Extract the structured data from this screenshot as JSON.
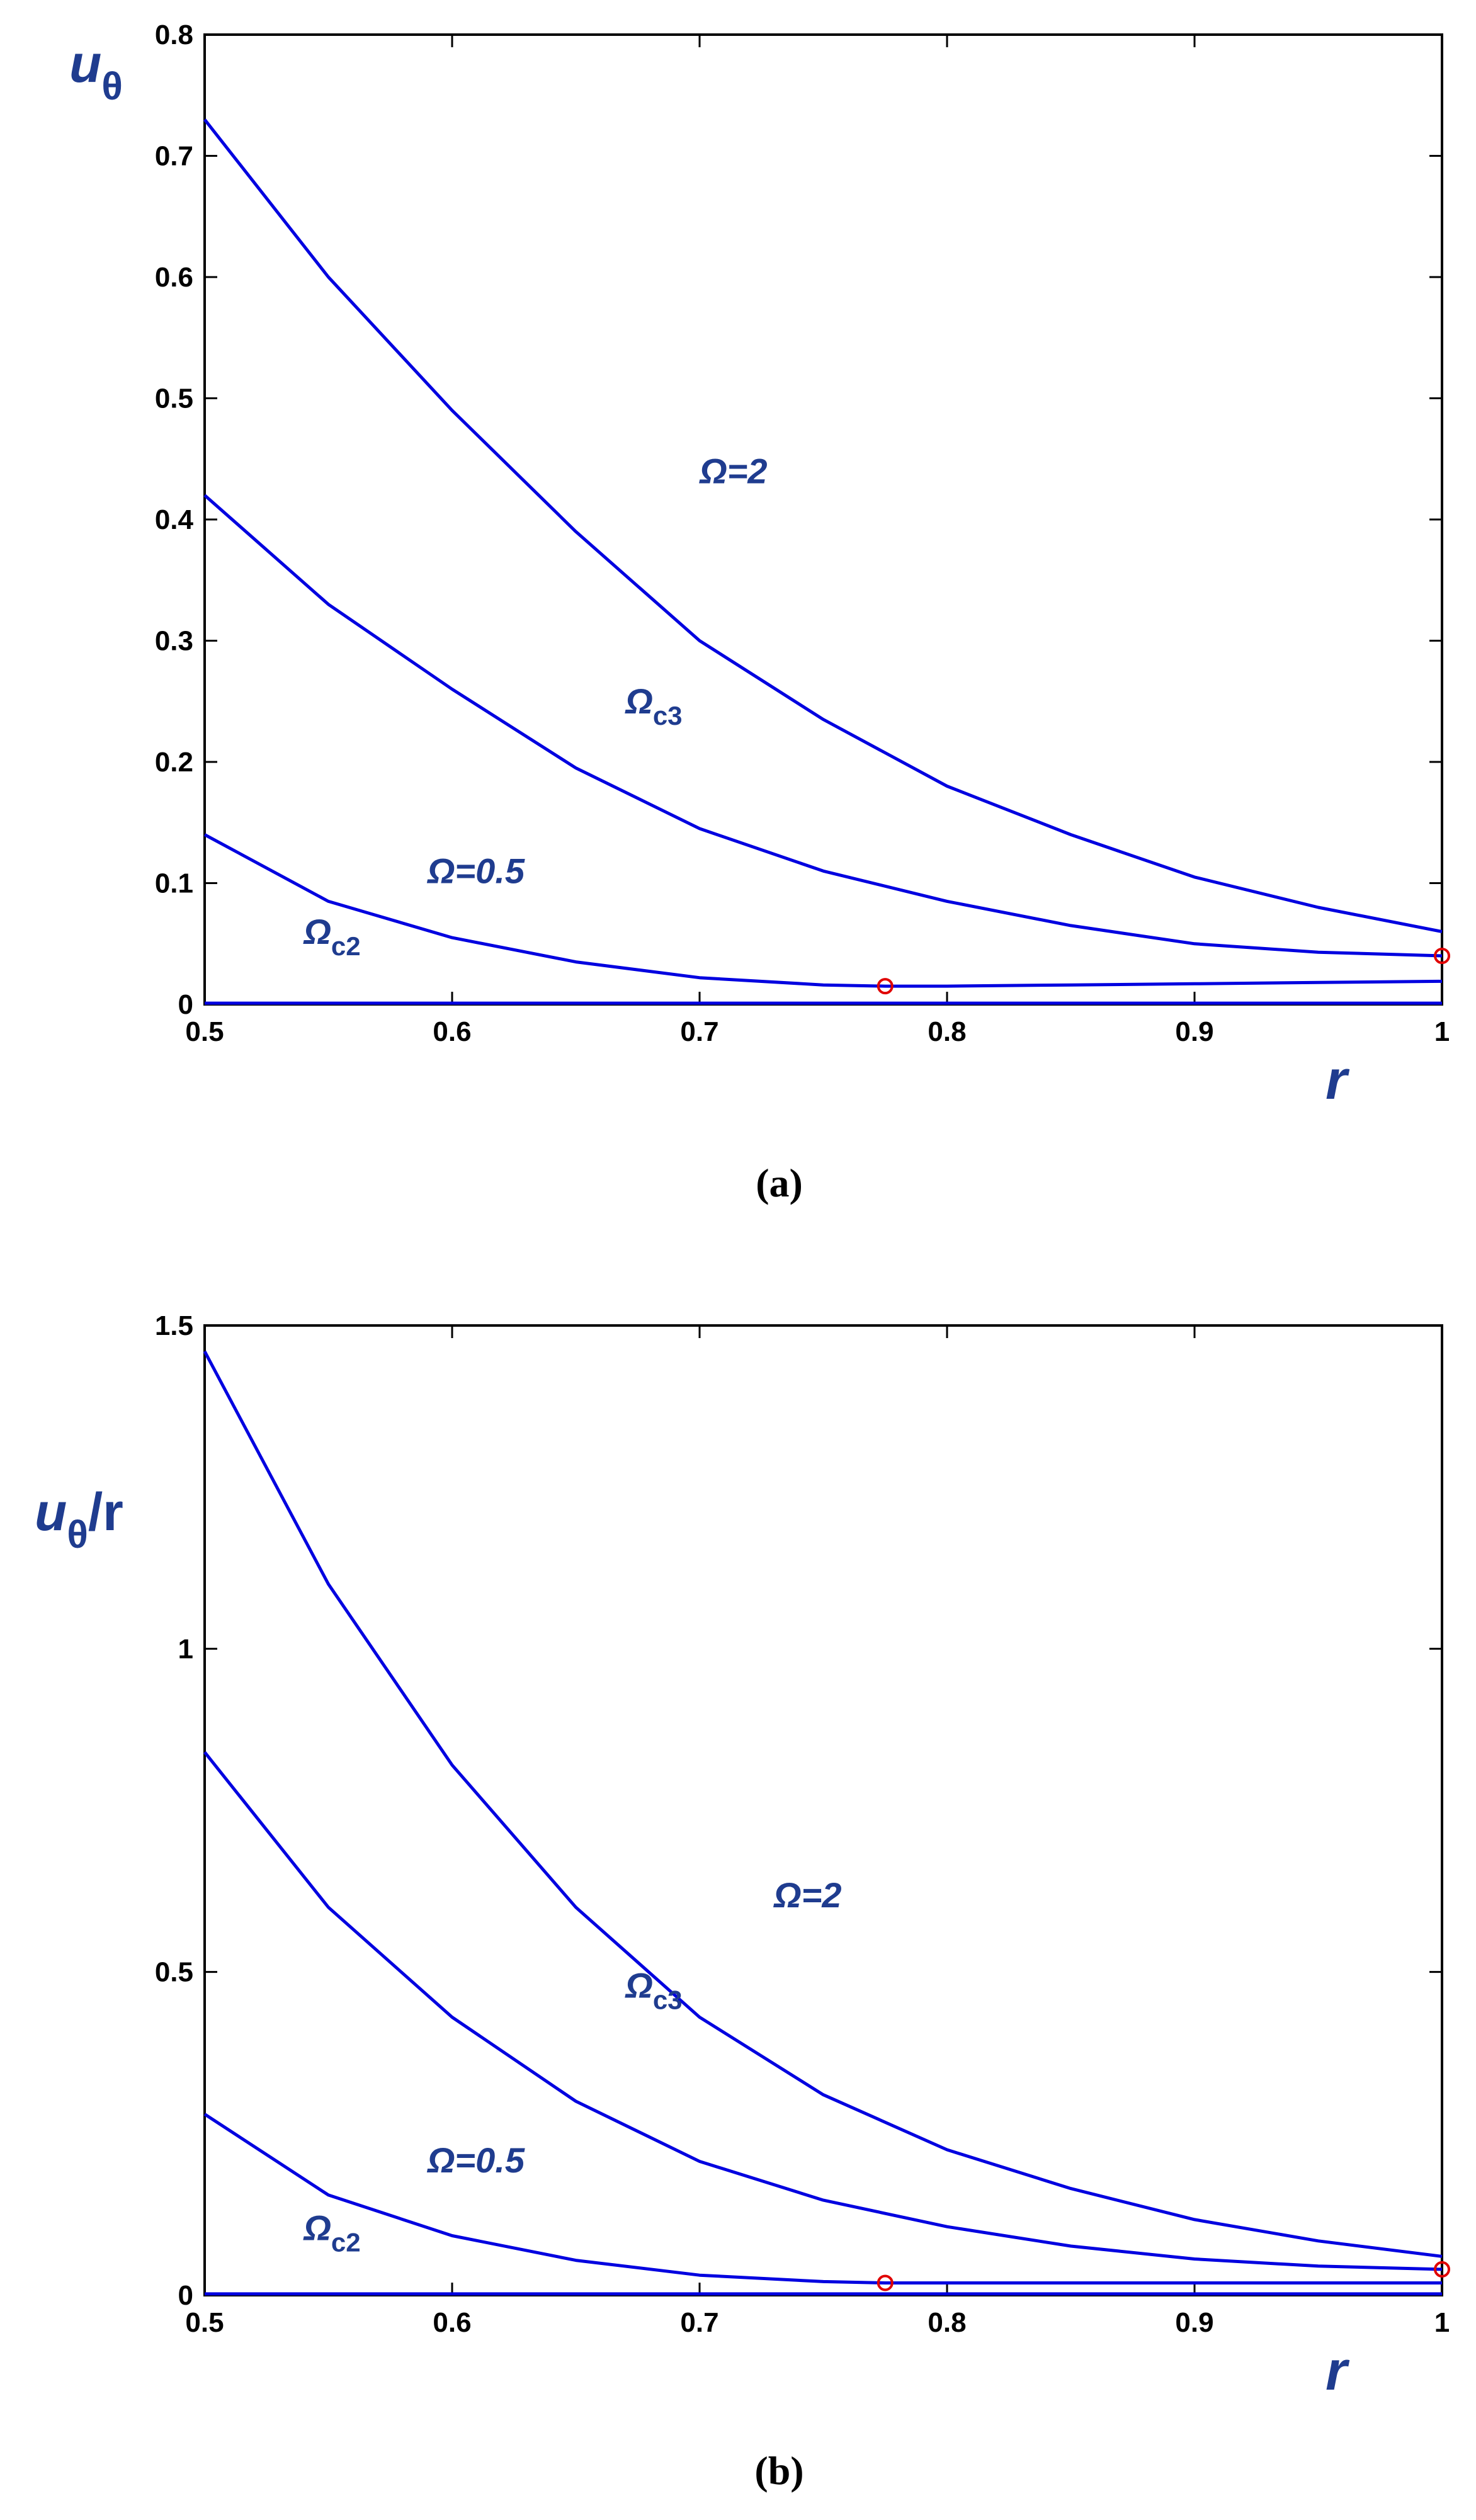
{
  "chart_data": [
    {
      "panel": "(a)",
      "type": "line",
      "ylabel_main": "u",
      "ylabel_sub": "θ",
      "ylabel_suffix": "",
      "xlabel": "r",
      "xlim": [
        0.5,
        1
      ],
      "ylim": [
        0,
        0.8
      ],
      "xticks": [
        "0.5",
        "0.6",
        "0.7",
        "0.8",
        "0.9",
        "1"
      ],
      "yticks": [
        "0",
        "0.1",
        "0.2",
        "0.3",
        "0.4",
        "0.5",
        "0.6",
        "0.7",
        "0.8"
      ],
      "line_color": "#0000e0",
      "marker_color": "#e00000",
      "series": [
        {
          "name": "Ω=2",
          "x": [
            0.5,
            0.55,
            0.6,
            0.65,
            0.7,
            0.75,
            0.8,
            0.85,
            0.9,
            0.95,
            1.0
          ],
          "values": [
            0.73,
            0.6,
            0.49,
            0.39,
            0.3,
            0.235,
            0.18,
            0.14,
            0.105,
            0.08,
            0.06
          ]
        },
        {
          "name": "Ωc3",
          "x": [
            0.5,
            0.55,
            0.6,
            0.65,
            0.7,
            0.75,
            0.8,
            0.85,
            0.9,
            0.95,
            1.0
          ],
          "values": [
            0.42,
            0.33,
            0.26,
            0.195,
            0.145,
            0.11,
            0.085,
            0.065,
            0.05,
            0.043,
            0.04
          ]
        },
        {
          "name": "Ω=0.5",
          "x": [
            0.5,
            0.55,
            0.6,
            0.65,
            0.7,
            0.75,
            0.775,
            0.8,
            0.85,
            0.9,
            0.95,
            1.0
          ],
          "values": [
            0.14,
            0.085,
            0.055,
            0.035,
            0.022,
            0.016,
            0.015,
            0.015,
            0.016,
            0.017,
            0.018,
            0.019
          ]
        },
        {
          "name": "Ωc2",
          "x": [
            0.5,
            0.6,
            0.7,
            0.8,
            0.9,
            1.0
          ],
          "values": [
            0.001,
            0.001,
            0.001,
            0.001,
            0.001,
            0.001
          ]
        }
      ],
      "markers": [
        {
          "x": 0.775,
          "y": 0.015
        },
        {
          "x": 1.0,
          "y": 0.04
        }
      ],
      "annotations": [
        {
          "main": "Ω=2",
          "sub": "",
          "x": 0.7,
          "y": 0.43
        },
        {
          "main": "Ω",
          "sub": "c3",
          "x": 0.67,
          "y": 0.24
        },
        {
          "main": "Ω=0.5",
          "sub": "",
          "x": 0.59,
          "y": 0.1
        },
        {
          "main": "Ω",
          "sub": "c2",
          "x": 0.54,
          "y": 0.05
        }
      ],
      "caption": "(a)"
    },
    {
      "panel": "(b)",
      "type": "line",
      "ylabel_main": "u",
      "ylabel_sub": "θ",
      "ylabel_suffix": "/r",
      "xlabel": "r",
      "xlim": [
        0.5,
        1
      ],
      "ylim": [
        0,
        1.5
      ],
      "xticks": [
        "0.5",
        "0.6",
        "0.7",
        "0.8",
        "0.9",
        "1"
      ],
      "yticks": [
        "0",
        "0.5",
        "1",
        "1.5"
      ],
      "line_color": "#0000e0",
      "marker_color": "#e00000",
      "series": [
        {
          "name": "Ω=2",
          "x": [
            0.5,
            0.55,
            0.6,
            0.65,
            0.7,
            0.75,
            0.8,
            0.85,
            0.9,
            0.95,
            1.0
          ],
          "values": [
            1.46,
            1.1,
            0.82,
            0.6,
            0.43,
            0.31,
            0.225,
            0.165,
            0.117,
            0.084,
            0.06
          ]
        },
        {
          "name": "Ωc3",
          "x": [
            0.5,
            0.55,
            0.6,
            0.65,
            0.7,
            0.75,
            0.8,
            0.85,
            0.9,
            0.95,
            1.0
          ],
          "values": [
            0.84,
            0.6,
            0.43,
            0.3,
            0.207,
            0.147,
            0.106,
            0.076,
            0.056,
            0.045,
            0.04
          ]
        },
        {
          "name": "Ω=0.5",
          "x": [
            0.5,
            0.55,
            0.6,
            0.65,
            0.7,
            0.75,
            0.775,
            0.8,
            0.85,
            0.9,
            0.95,
            1.0
          ],
          "values": [
            0.28,
            0.155,
            0.092,
            0.054,
            0.031,
            0.021,
            0.019,
            0.019,
            0.019,
            0.019,
            0.019,
            0.019
          ]
        },
        {
          "name": "Ωc2",
          "x": [
            0.5,
            0.6,
            0.7,
            0.8,
            0.9,
            1.0
          ],
          "values": [
            0.002,
            0.002,
            0.002,
            0.002,
            0.002,
            0.002
          ]
        }
      ],
      "markers": [
        {
          "x": 0.775,
          "y": 0.019
        },
        {
          "x": 1.0,
          "y": 0.04
        }
      ],
      "annotations": [
        {
          "main": "Ω=2",
          "sub": "",
          "x": 0.73,
          "y": 0.6
        },
        {
          "main": "Ω",
          "sub": "c3",
          "x": 0.67,
          "y": 0.46
        },
        {
          "main": "Ω=0.5",
          "sub": "",
          "x": 0.59,
          "y": 0.19
        },
        {
          "main": "Ω",
          "sub": "c2",
          "x": 0.54,
          "y": 0.085
        }
      ],
      "caption": "(b)"
    }
  ]
}
